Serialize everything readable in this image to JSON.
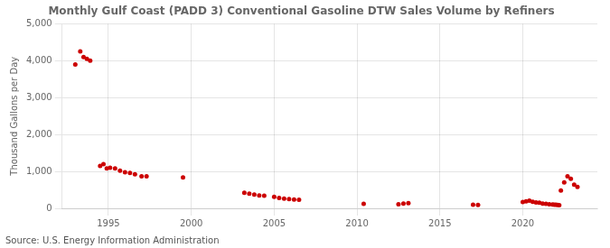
{
  "chart_data": {
    "type": "scatter",
    "title": "Monthly Gulf Coast (PADD 3) Conventional Gasoline DTW Sales Volume by Refiners",
    "y_label": "Thousand Gallons per Day",
    "annotations": [
      "Source: U.S. Energy Information Administration"
    ],
    "color": "#cc0000",
    "x": [
      1993.0,
      1993.3,
      1993.5,
      1993.7,
      1993.9,
      1994.5,
      1994.7,
      1994.9,
      1995.1,
      1995.4,
      1995.7,
      1996.0,
      1996.3,
      1996.6,
      1997.0,
      1997.3,
      1999.5,
      2003.2,
      2003.5,
      2003.8,
      2004.1,
      2004.4,
      2005.0,
      2005.3,
      2005.6,
      2005.9,
      2006.2,
      2006.5,
      2010.4,
      2012.5,
      2012.8,
      2013.1,
      2017.0,
      2017.3,
      2020.0,
      2020.2,
      2020.4,
      2020.6,
      2020.8,
      2021.0,
      2021.2,
      2021.4,
      2021.6,
      2021.8,
      2021.9,
      2022.0,
      2022.1,
      2022.2,
      2022.3,
      2022.5,
      2022.7,
      2022.9,
      2023.1,
      2023.3
    ],
    "values": [
      3900,
      4250,
      4100,
      4050,
      4000,
      1150,
      1200,
      1080,
      1100,
      1080,
      1020,
      980,
      960,
      920,
      870,
      870,
      840,
      420,
      400,
      370,
      350,
      340,
      310,
      280,
      265,
      250,
      240,
      230,
      120,
      110,
      130,
      140,
      100,
      90,
      170,
      190,
      210,
      180,
      160,
      150,
      130,
      120,
      110,
      105,
      100,
      95,
      90,
      85,
      480,
      700,
      870,
      800,
      640,
      580
    ],
    "xlim": [
      1992.2,
      2024.5
    ],
    "xticks": [
      1995,
      2000,
      2005,
      2010,
      2015,
      2020
    ],
    "ylim": [
      0,
      5000
    ],
    "yticks": [
      0,
      {
        "value": 1000,
        "label": "1,000"
      },
      {
        "value": 2000,
        "label": "2,000"
      },
      {
        "value": 3000,
        "label": "3,000"
      },
      {
        "value": 4000,
        "label": "4,000"
      },
      {
        "value": 5000,
        "label": "5,000"
      }
    ],
    "grid": true
  }
}
